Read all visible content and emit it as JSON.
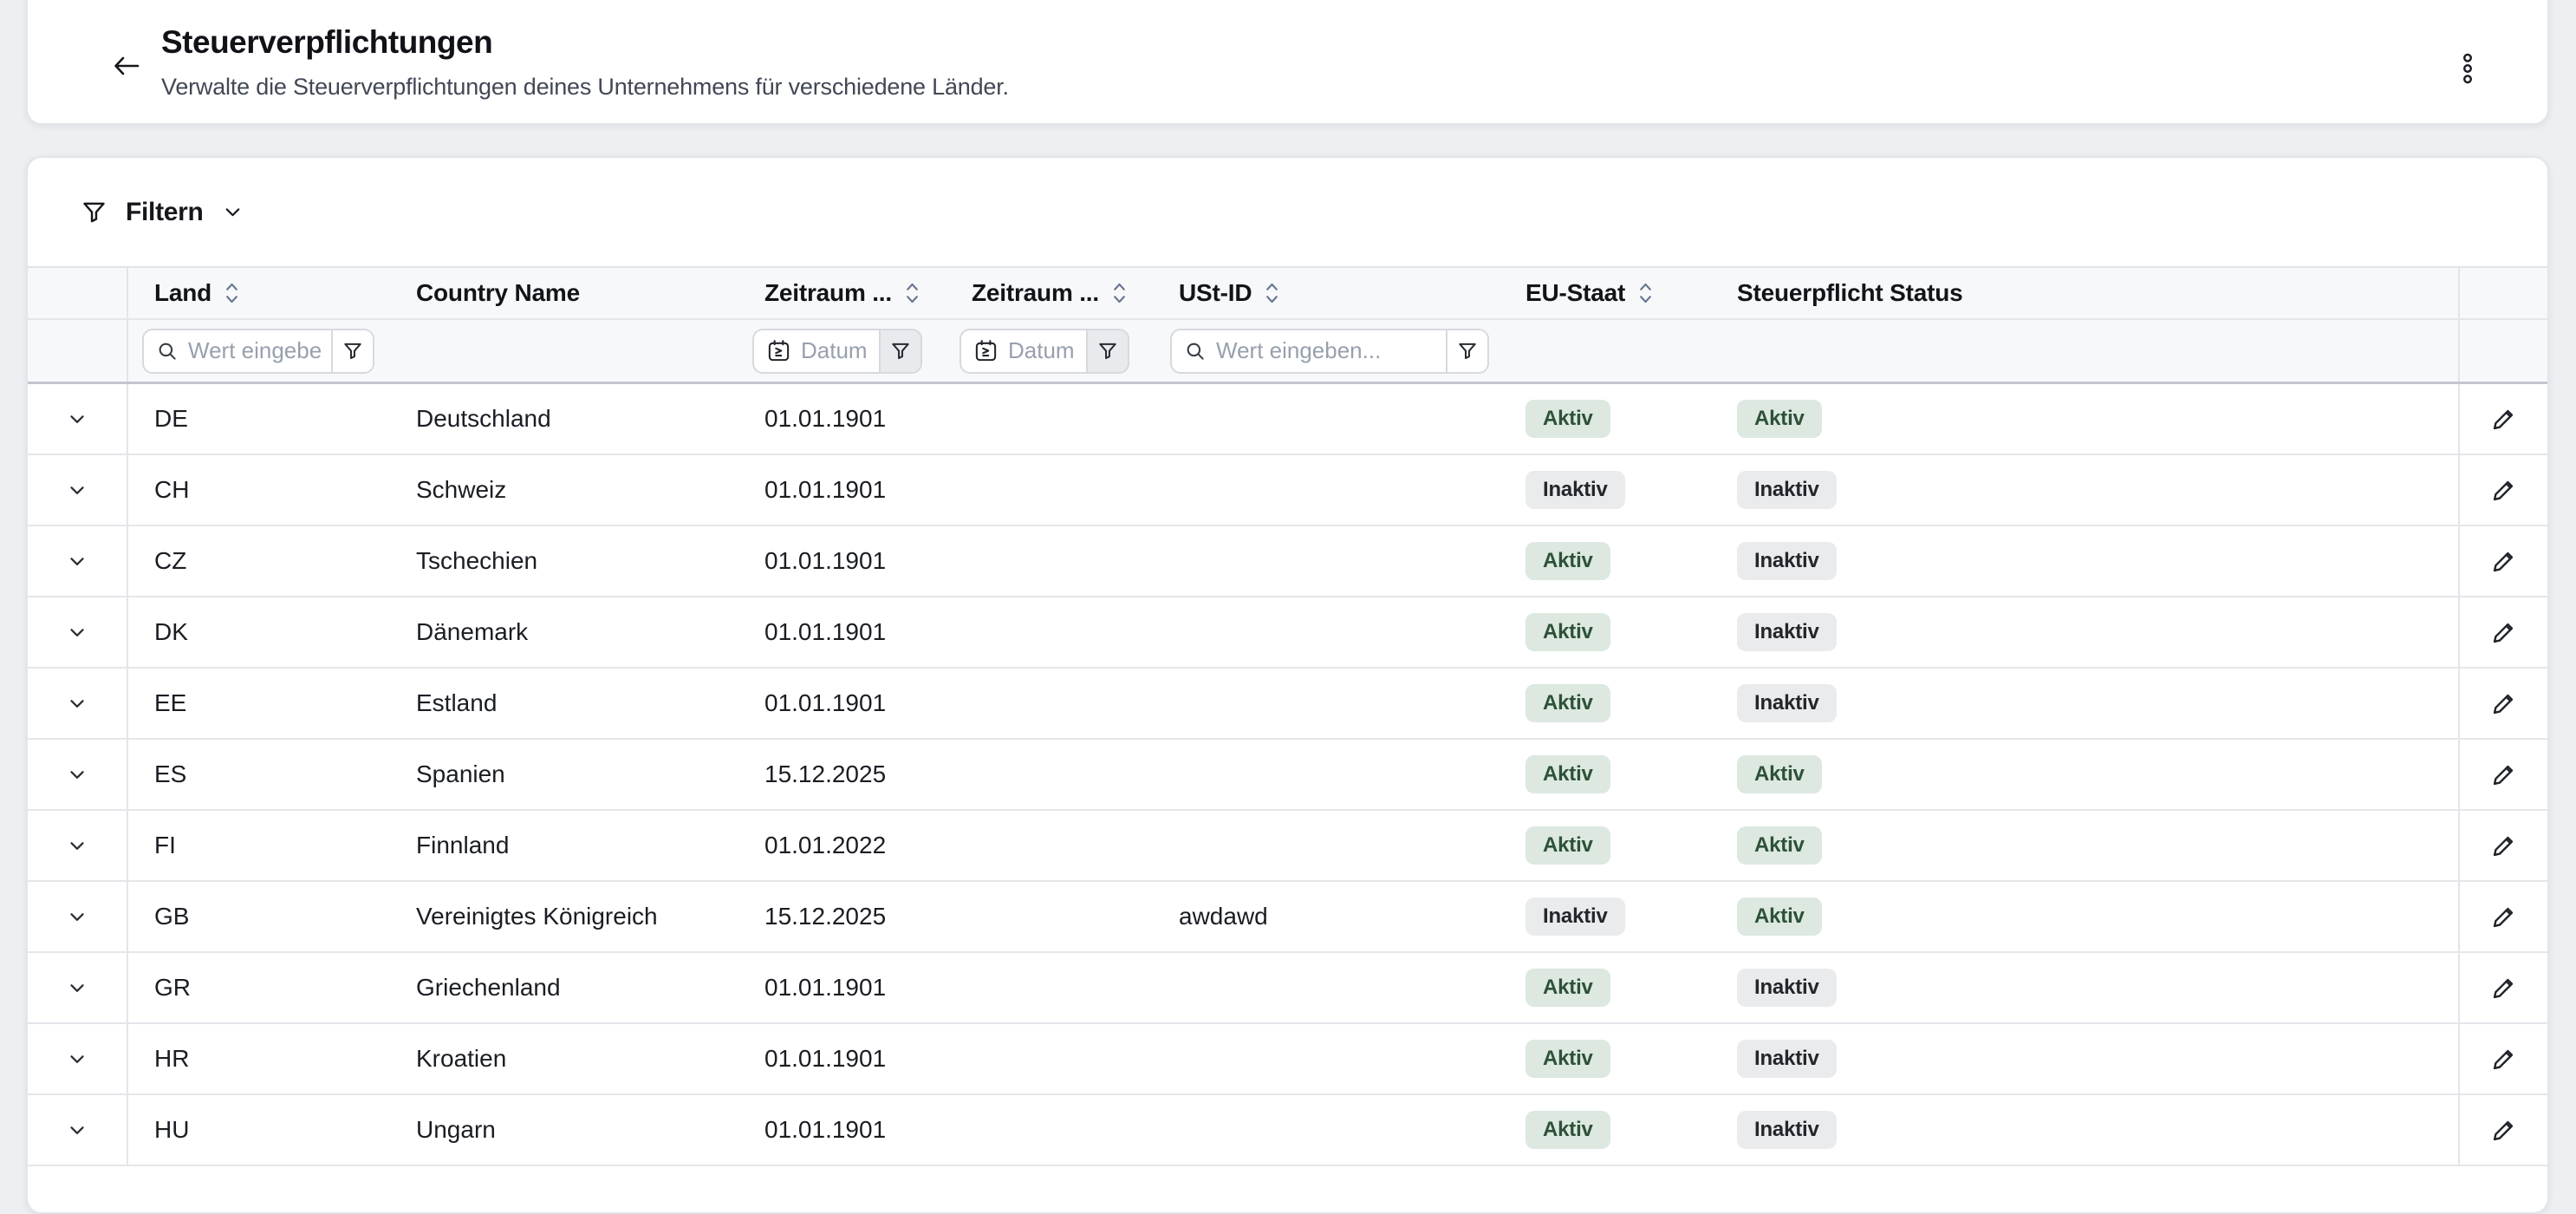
{
  "header": {
    "title": "Steuerverpflichtungen",
    "subtitle": "Verwalte die Steuerverpflichtungen deines Unternehmens für verschiedene Länder."
  },
  "filter_bar": {
    "label": "Filtern"
  },
  "table": {
    "columns": [
      {
        "label": "Land",
        "sortable": true
      },
      {
        "label": "Country Name",
        "sortable": false
      },
      {
        "label": "Zeitraum ...",
        "sortable": true
      },
      {
        "label": "Zeitraum ...",
        "sortable": true
      },
      {
        "label": "USt-ID",
        "sortable": true
      },
      {
        "label": "EU-Staat",
        "sortable": true
      },
      {
        "label": "Steuerpflicht Status",
        "sortable": false
      }
    ],
    "filters": {
      "land_placeholder": "Wert eingeben.",
      "date_from_placeholder": "Datum au",
      "date_to_placeholder": "Datum au",
      "ustid_placeholder": "Wert eingeben..."
    },
    "rows": [
      {
        "land": "DE",
        "country": "Deutschland",
        "zeitraum_von": "01.01.1901",
        "zeitraum_bis": "",
        "ustid": "",
        "eu_staat": {
          "label": "Aktiv",
          "variant": "active"
        },
        "steuerpflicht": {
          "label": "Aktiv",
          "variant": "active"
        }
      },
      {
        "land": "CH",
        "country": "Schweiz",
        "zeitraum_von": "01.01.1901",
        "zeitraum_bis": "",
        "ustid": "",
        "eu_staat": {
          "label": "Inaktiv",
          "variant": "inactive"
        },
        "steuerpflicht": {
          "label": "Inaktiv",
          "variant": "inactive"
        }
      },
      {
        "land": "CZ",
        "country": "Tschechien",
        "zeitraum_von": "01.01.1901",
        "zeitraum_bis": "",
        "ustid": "",
        "eu_staat": {
          "label": "Aktiv",
          "variant": "active"
        },
        "steuerpflicht": {
          "label": "Inaktiv",
          "variant": "inactive"
        }
      },
      {
        "land": "DK",
        "country": "Dänemark",
        "zeitraum_von": "01.01.1901",
        "zeitraum_bis": "",
        "ustid": "",
        "eu_staat": {
          "label": "Aktiv",
          "variant": "active"
        },
        "steuerpflicht": {
          "label": "Inaktiv",
          "variant": "inactive"
        }
      },
      {
        "land": "EE",
        "country": "Estland",
        "zeitraum_von": "01.01.1901",
        "zeitraum_bis": "",
        "ustid": "",
        "eu_staat": {
          "label": "Aktiv",
          "variant": "active"
        },
        "steuerpflicht": {
          "label": "Inaktiv",
          "variant": "inactive"
        }
      },
      {
        "land": "ES",
        "country": "Spanien",
        "zeitraum_von": "15.12.2025",
        "zeitraum_bis": "",
        "ustid": "",
        "eu_staat": {
          "label": "Aktiv",
          "variant": "active"
        },
        "steuerpflicht": {
          "label": "Aktiv",
          "variant": "active"
        }
      },
      {
        "land": "FI",
        "country": "Finnland",
        "zeitraum_von": "01.01.2022",
        "zeitraum_bis": "",
        "ustid": "",
        "eu_staat": {
          "label": "Aktiv",
          "variant": "active"
        },
        "steuerpflicht": {
          "label": "Aktiv",
          "variant": "active"
        }
      },
      {
        "land": "GB",
        "country": "Vereinigtes Königreich",
        "zeitraum_von": "15.12.2025",
        "zeitraum_bis": "",
        "ustid": "awdawd",
        "eu_staat": {
          "label": "Inaktiv",
          "variant": "inactive"
        },
        "steuerpflicht": {
          "label": "Aktiv",
          "variant": "active"
        }
      },
      {
        "land": "GR",
        "country": "Griechenland",
        "zeitraum_von": "01.01.1901",
        "zeitraum_bis": "",
        "ustid": "",
        "eu_staat": {
          "label": "Aktiv",
          "variant": "active"
        },
        "steuerpflicht": {
          "label": "Inaktiv",
          "variant": "inactive"
        }
      },
      {
        "land": "HR",
        "country": "Kroatien",
        "zeitraum_von": "01.01.1901",
        "zeitraum_bis": "",
        "ustid": "",
        "eu_staat": {
          "label": "Aktiv",
          "variant": "active"
        },
        "steuerpflicht": {
          "label": "Inaktiv",
          "variant": "inactive"
        }
      },
      {
        "land": "HU",
        "country": "Ungarn",
        "zeitraum_von": "01.01.1901",
        "zeitraum_bis": "",
        "ustid": "",
        "eu_staat": {
          "label": "Aktiv",
          "variant": "active"
        },
        "steuerpflicht": {
          "label": "Inaktiv",
          "variant": "inactive"
        }
      }
    ]
  },
  "icons": [
    "back-arrow-icon",
    "kebab-menu-icon",
    "funnel-icon",
    "chevron-down-icon",
    "sort-icon",
    "search-icon",
    "calendar-gte-icon",
    "pencil-icon"
  ],
  "colors": {
    "page_bg": "#edeff2",
    "badge_active_bg": "#dce8e0",
    "badge_active_text": "#2d5138",
    "badge_inactive_bg": "#eaebed",
    "badge_inactive_text": "#23262b"
  }
}
